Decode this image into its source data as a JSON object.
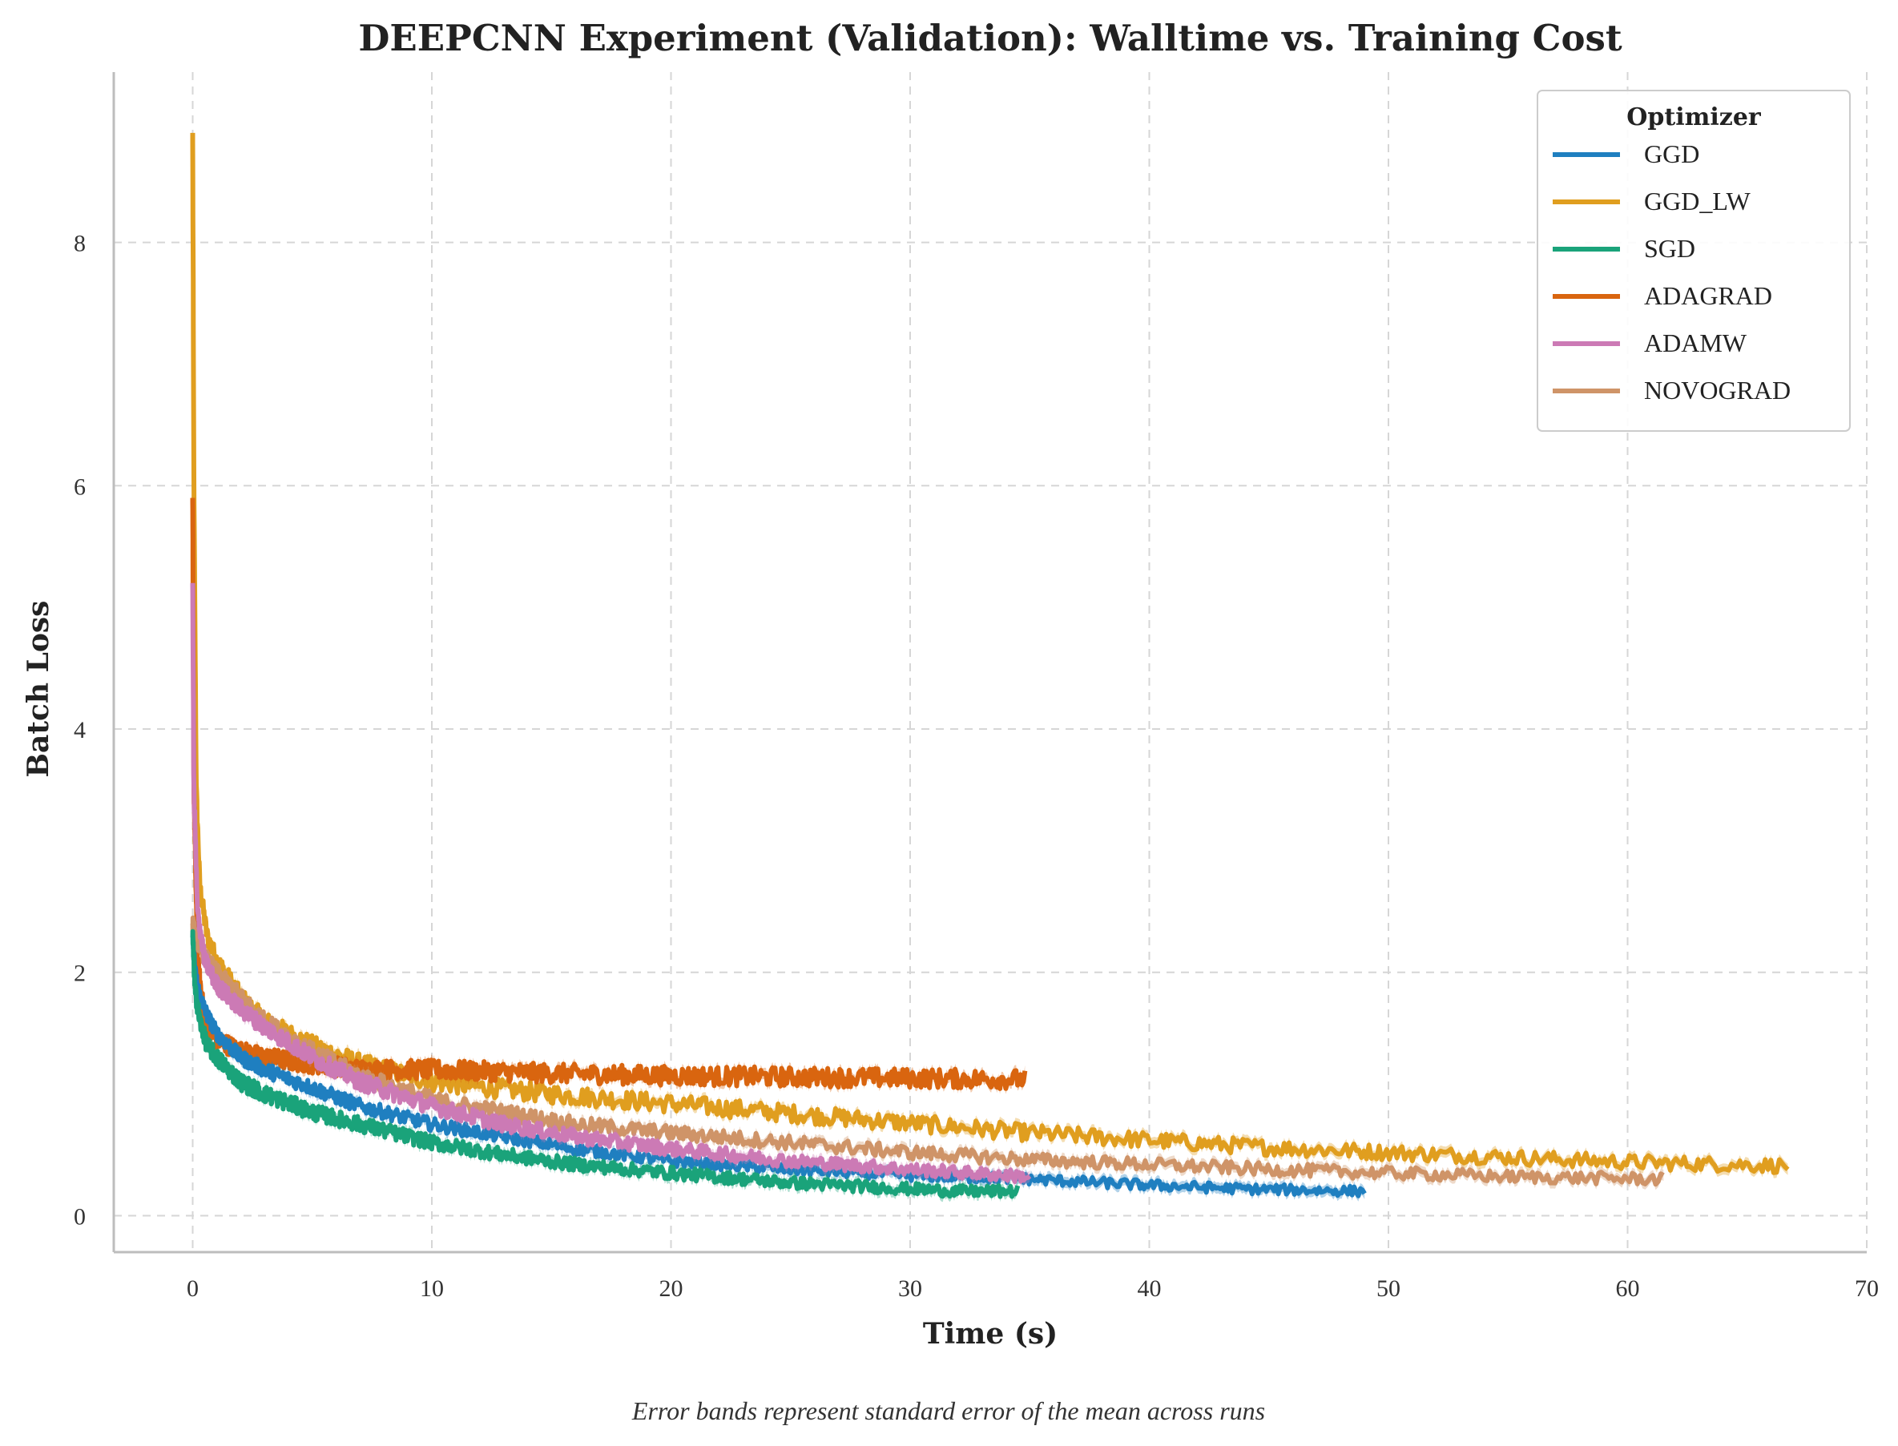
{
  "chart_data": {
    "type": "line",
    "title": "DEEPCNN Experiment (Validation): Walltime vs. Training Cost",
    "xlabel": "Time (s)",
    "ylabel": "Batch Loss",
    "caption": "Error bands represent standard error of the mean across runs",
    "xlim": [
      -3.3,
      70
    ],
    "ylim": [
      -0.3,
      9.4
    ],
    "xticks": [
      0,
      10,
      20,
      30,
      40,
      50,
      60,
      70
    ],
    "yticks": [
      0,
      2,
      4,
      6,
      8
    ],
    "grid": true,
    "legend": {
      "title": "Optimizer",
      "position": "top-right"
    },
    "series": [
      {
        "name": "GGD",
        "color": "#1f7fc0",
        "x": [
          0,
          0.1,
          0.3,
          0.6,
          1,
          2,
          3,
          5,
          7,
          10,
          13,
          16,
          20,
          25,
          30,
          35,
          40,
          44,
          49
        ],
        "y": [
          2.3,
          2.0,
          1.8,
          1.65,
          1.5,
          1.3,
          1.2,
          1.05,
          0.9,
          0.75,
          0.65,
          0.55,
          0.45,
          0.38,
          0.33,
          0.3,
          0.25,
          0.22,
          0.2
        ],
        "noise": 0.06
      },
      {
        "name": "GGD_LW",
        "color": "#e09e1f",
        "x": [
          0,
          0.05,
          0.15,
          0.3,
          0.6,
          1,
          2,
          3,
          5,
          7,
          10,
          15,
          20,
          25,
          30,
          35,
          40,
          45,
          50,
          55,
          60,
          66.7
        ],
        "y": [
          8.9,
          6.0,
          3.5,
          2.7,
          2.3,
          2.1,
          1.8,
          1.6,
          1.4,
          1.25,
          1.1,
          1.0,
          0.92,
          0.84,
          0.76,
          0.68,
          0.62,
          0.56,
          0.52,
          0.48,
          0.44,
          0.41
        ],
        "noise": 0.08
      },
      {
        "name": "SGD",
        "color": "#1aa37a",
        "x": [
          0,
          0.1,
          0.3,
          0.6,
          1,
          2,
          3,
          5,
          7,
          10,
          13,
          16,
          20,
          25,
          30,
          32,
          34.5
        ],
        "y": [
          2.3,
          1.85,
          1.6,
          1.4,
          1.3,
          1.1,
          1.0,
          0.85,
          0.75,
          0.6,
          0.5,
          0.42,
          0.35,
          0.27,
          0.22,
          0.2,
          0.2
        ],
        "noise": 0.07
      },
      {
        "name": "ADAGRAD",
        "color": "#d9650f",
        "x": [
          0,
          0.05,
          0.2,
          0.5,
          1,
          2,
          3,
          5,
          7,
          10,
          15,
          20,
          25,
          30,
          34.8
        ],
        "y": [
          5.9,
          3.5,
          2.1,
          1.6,
          1.45,
          1.35,
          1.3,
          1.25,
          1.2,
          1.2,
          1.17,
          1.15,
          1.14,
          1.13,
          1.12
        ],
        "noise": 0.08
      },
      {
        "name": "ADAMW",
        "color": "#cc7ab5",
        "x": [
          0,
          0.05,
          0.2,
          0.5,
          1,
          2,
          3,
          5,
          7,
          10,
          13,
          16,
          20,
          25,
          30,
          35
        ],
        "y": [
          5.2,
          3.5,
          2.5,
          2.1,
          1.9,
          1.7,
          1.55,
          1.3,
          1.1,
          0.9,
          0.75,
          0.65,
          0.55,
          0.45,
          0.38,
          0.32
        ],
        "noise": 0.07
      },
      {
        "name": "NOVOGRAD",
        "color": "#cf9468",
        "x": [
          0,
          0.1,
          0.3,
          0.6,
          1,
          2,
          3,
          5,
          7,
          10,
          13,
          16,
          20,
          25,
          30,
          35,
          40,
          45,
          50,
          55,
          61.5
        ],
        "y": [
          2.4,
          2.3,
          2.2,
          2.1,
          2.0,
          1.8,
          1.6,
          1.35,
          1.15,
          0.95,
          0.85,
          0.75,
          0.68,
          0.6,
          0.52,
          0.46,
          0.42,
          0.38,
          0.35,
          0.32,
          0.3
        ],
        "noise": 0.07
      }
    ]
  }
}
